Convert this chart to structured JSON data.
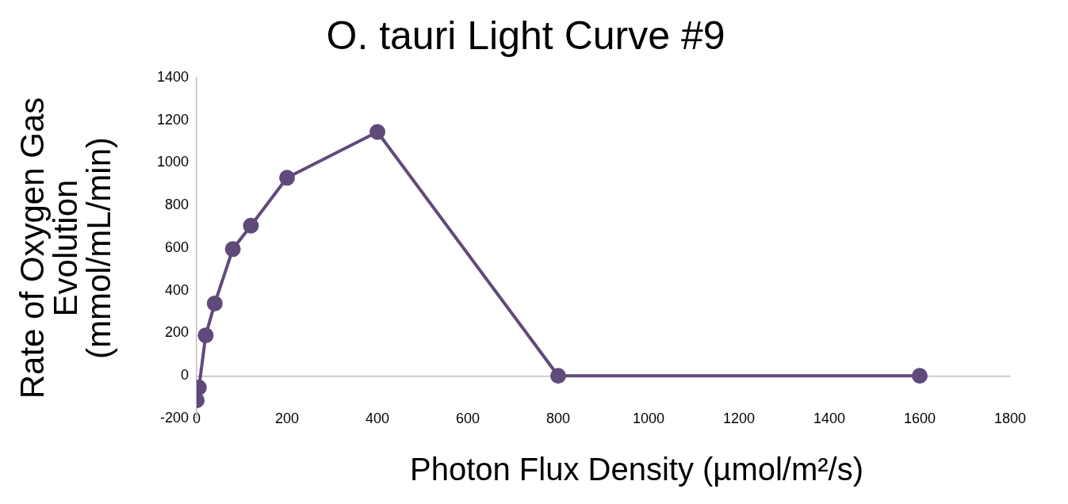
{
  "chart_data": {
    "type": "line",
    "title": "O. tauri Light Curve #9",
    "xlabel": "Photon Flux Density (µmol/m²/s)",
    "ylabel": "Rate of Oxygen Gas Evolution (mmol/mL/min)",
    "x": [
      0,
      5,
      20,
      40,
      80,
      120,
      200,
      400,
      800,
      1600
    ],
    "series": [
      {
        "color": "#604a7b",
        "values": [
          -115,
          -55,
          190,
          340,
          595,
          705,
          930,
          1145,
          0,
          0
        ]
      }
    ],
    "xlim": [
      0,
      1800
    ],
    "xticks": [
      0,
      200,
      400,
      600,
      800,
      1000,
      1200,
      1400,
      1600,
      1800
    ],
    "ylim": [
      -200,
      1400
    ],
    "yticks": [
      -200,
      0,
      200,
      400,
      600,
      800,
      1000,
      1200,
      1400
    ],
    "grid": false,
    "legend": false,
    "marker": "circle",
    "line_style": "solid"
  }
}
